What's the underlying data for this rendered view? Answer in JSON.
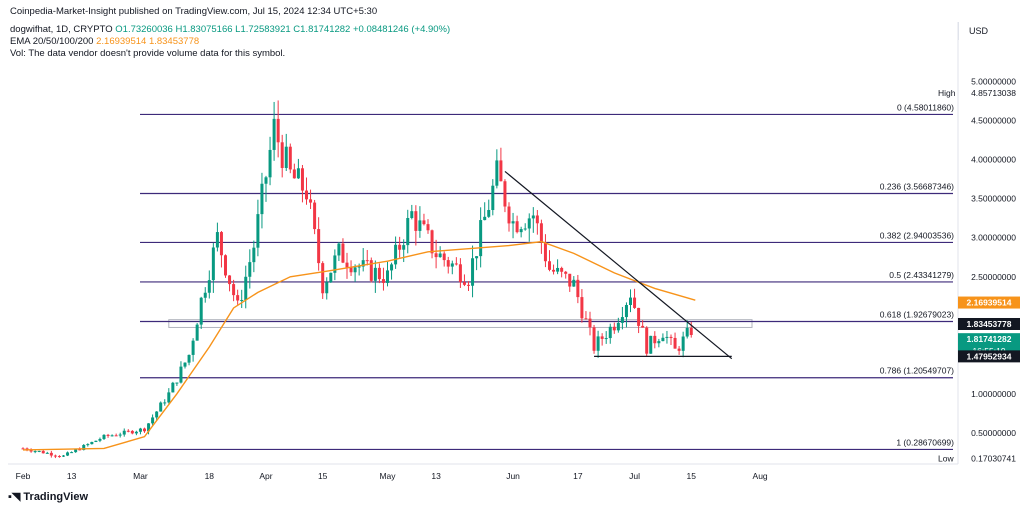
{
  "header": {
    "publisher_line": "Coinpedia-Market-Insight published on TradingView.com, Jul 15, 2024 12:34 UTC+5:30",
    "symbol": "dogwifhat, 1D, CRYPTO",
    "ohlc": "O1.73260036 H1.83075166 L1.72583921 C1.81741282 +0.08481246 (+4.90%)",
    "ema_label": "EMA 20/50/100/200",
    "ema_values": "2.16939514  1.83453778",
    "vol_note": "Vol: The data vendor doesn't provide volume data for this symbol."
  },
  "unit": "USD",
  "branding": "TradingView",
  "colors": {
    "up": "#089981",
    "down": "#f23645",
    "ema": "#f7931a",
    "fib": "#3d2a7a",
    "trendline": "#131722"
  },
  "chart_data": {
    "type": "candlestick",
    "ylim": [
      0.1,
      5.15
    ],
    "y_ticks": [
      "5.00000000",
      "4.50000000",
      "4.00000000",
      "3.50000000",
      "3.00000000",
      "2.50000000",
      "1.00000000",
      "0.50000000"
    ],
    "x_ticks": [
      "Feb",
      "13",
      "Mar",
      "18",
      "Apr",
      "15",
      "May",
      "13",
      "Jun",
      "17",
      "Jul",
      "15",
      "Aug"
    ],
    "x_ticks_day": [
      0,
      12,
      29,
      46,
      60,
      74,
      90,
      102,
      121,
      137,
      151,
      165,
      182
    ],
    "fib_levels": [
      {
        "label": "0 (4.58011860)",
        "value": 4.5801186
      },
      {
        "label": "0.236 (3.56687346)",
        "value": 3.56687346
      },
      {
        "label": "0.382 (2.94003536)",
        "value": 2.94003536
      },
      {
        "label": "0.5 (2.43341279)",
        "value": 2.43341279
      },
      {
        "label": "0.618 (1.92679023)",
        "value": 1.92679023
      },
      {
        "label": "0.786 (1.20549707)",
        "value": 1.20549707
      },
      {
        "label": "1 (0.28670699)",
        "value": 0.28670699
      }
    ],
    "price_labels": [
      {
        "name": "High",
        "value": "4.85713038",
        "y": 4.85713038,
        "style": "plain"
      },
      {
        "name": "ema",
        "value": "2.16939514",
        "y": 2.16939514,
        "style": "ema"
      },
      {
        "name": "ema2",
        "value": "1.83453778",
        "y": 1.8945,
        "style": "dark"
      },
      {
        "name": "last",
        "value": "1.81741282",
        "y": 1.7,
        "style": "up",
        "countdown": "16:55:19"
      },
      {
        "name": "support",
        "value": "1.47952934",
        "y": 1.47952934,
        "style": "dark"
      },
      {
        "name": "Low",
        "value": "0.17030741",
        "y": 0.17030741,
        "style": "plain"
      }
    ],
    "key_points": [
      {
        "day": 0,
        "price": 0.3
      },
      {
        "day": 10,
        "price": 0.2
      },
      {
        "day": 20,
        "price": 0.45
      },
      {
        "day": 30,
        "price": 0.55
      },
      {
        "day": 36,
        "price": 1.0
      },
      {
        "day": 41,
        "price": 1.5
      },
      {
        "day": 44,
        "price": 2.2
      },
      {
        "day": 48,
        "price": 3.0
      },
      {
        "day": 53,
        "price": 2.1
      },
      {
        "day": 57,
        "price": 2.9
      },
      {
        "day": 62,
        "price": 4.4
      },
      {
        "day": 66,
        "price": 3.8
      },
      {
        "day": 70,
        "price": 3.6
      },
      {
        "day": 74,
        "price": 2.4
      },
      {
        "day": 78,
        "price": 2.8
      },
      {
        "day": 84,
        "price": 2.6
      },
      {
        "day": 90,
        "price": 2.5
      },
      {
        "day": 96,
        "price": 3.3
      },
      {
        "day": 102,
        "price": 2.8
      },
      {
        "day": 110,
        "price": 2.5
      },
      {
        "day": 117,
        "price": 3.8
      },
      {
        "day": 121,
        "price": 3.2
      },
      {
        "day": 126,
        "price": 3.3
      },
      {
        "day": 130,
        "price": 2.6
      },
      {
        "day": 136,
        "price": 2.4
      },
      {
        "day": 141,
        "price": 1.6
      },
      {
        "day": 146,
        "price": 1.9
      },
      {
        "day": 150,
        "price": 2.3
      },
      {
        "day": 154,
        "price": 1.6
      },
      {
        "day": 158,
        "price": 1.8
      },
      {
        "day": 161,
        "price": 1.55
      },
      {
        "day": 165,
        "price": 1.82
      }
    ],
    "ema_points": [
      {
        "day": 0,
        "price": 0.28
      },
      {
        "day": 20,
        "price": 0.3
      },
      {
        "day": 30,
        "price": 0.45
      },
      {
        "day": 38,
        "price": 1.0
      },
      {
        "day": 46,
        "price": 1.6
      },
      {
        "day": 52,
        "price": 2.1
      },
      {
        "day": 58,
        "price": 2.3
      },
      {
        "day": 66,
        "price": 2.5
      },
      {
        "day": 76,
        "price": 2.58
      },
      {
        "day": 90,
        "price": 2.7
      },
      {
        "day": 100,
        "price": 2.82
      },
      {
        "day": 110,
        "price": 2.86
      },
      {
        "day": 120,
        "price": 2.9
      },
      {
        "day": 128,
        "price": 2.95
      },
      {
        "day": 136,
        "price": 2.8
      },
      {
        "day": 146,
        "price": 2.55
      },
      {
        "day": 156,
        "price": 2.35
      },
      {
        "day": 166,
        "price": 2.2
      }
    ],
    "trendline": {
      "from": {
        "day": 119,
        "price": 3.85
      },
      "to": {
        "day": 175,
        "price": 1.45
      }
    },
    "support_line": {
      "from_day": 141,
      "to_day": 175,
      "price": 1.47952934
    },
    "zone": {
      "from_day": 36,
      "to_day": 180,
      "top": 1.95,
      "bottom": 1.85
    }
  }
}
